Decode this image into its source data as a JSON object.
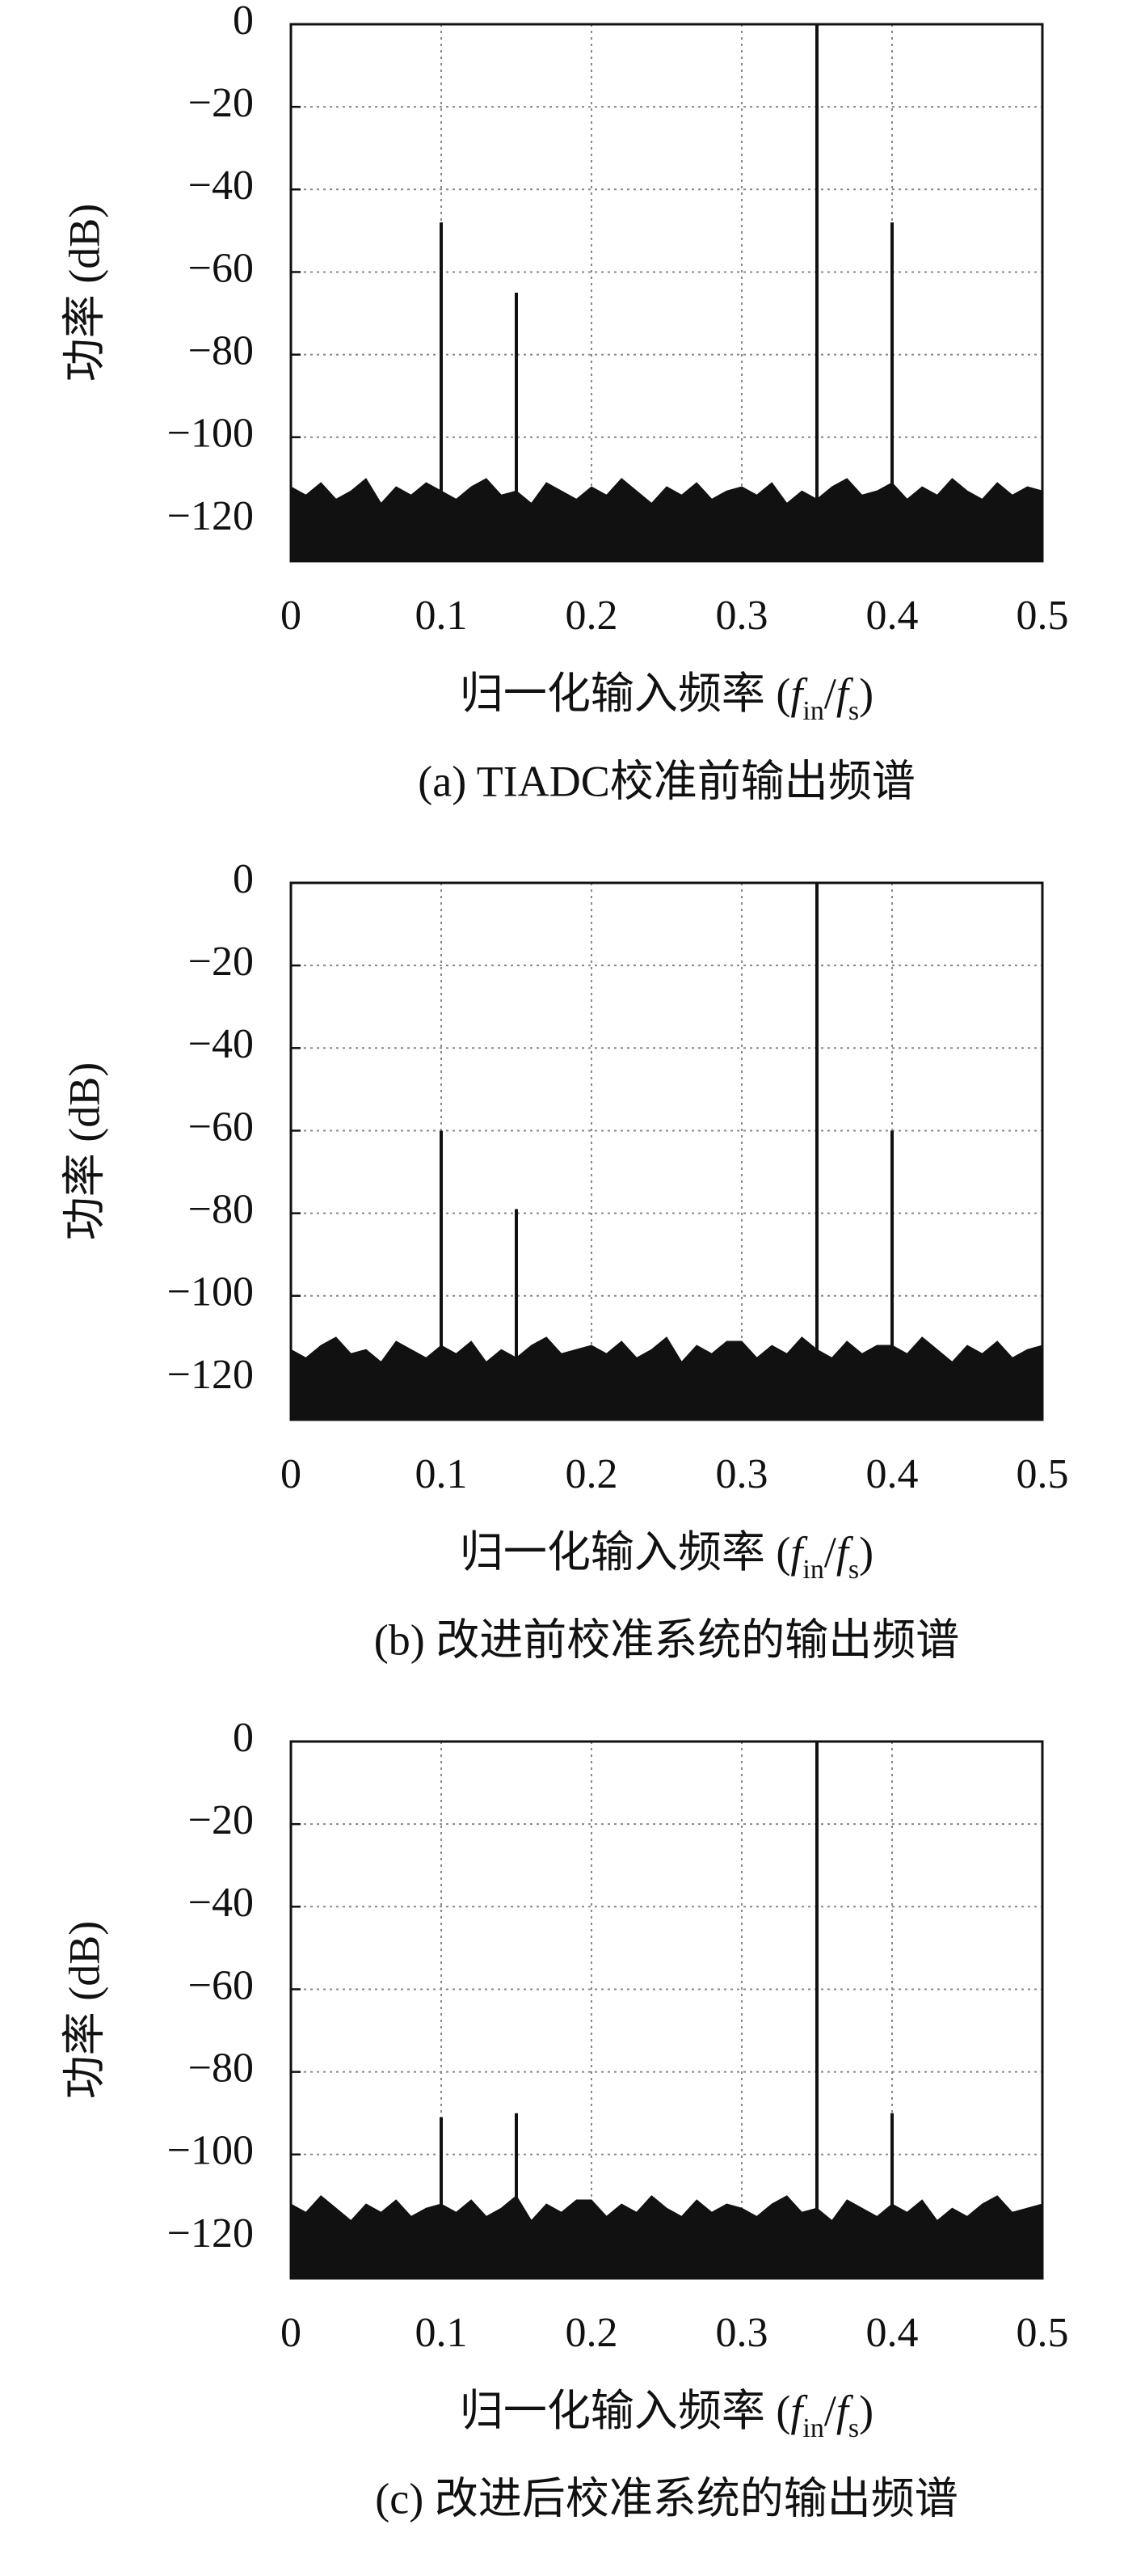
{
  "chart_data": [
    {
      "type": "spectrum",
      "ylabel": "功率 (dB)",
      "xlabel": [
        "归一化输入频率 (",
        "f",
        "in",
        "/",
        "f",
        "s",
        ")"
      ],
      "caption": "(a) TIADC校准前输出频谱",
      "xlim": [
        0,
        0.5
      ],
      "xticks": [
        0,
        0.1,
        0.2,
        0.3,
        0.4,
        0.5
      ],
      "ylim": [
        -130,
        0
      ],
      "yticks": [
        0,
        {
          "value": -20,
          "label": "−20"
        },
        {
          "value": -40,
          "label": "−40"
        },
        {
          "value": -60,
          "label": "−60"
        },
        {
          "value": -80,
          "label": "−80"
        },
        {
          "value": -100,
          "label": "−100"
        },
        {
          "value": -120,
          "label": "−120"
        }
      ],
      "grid": true,
      "color": "#111111",
      "series": [
        {
          "style": "area",
          "x": [
            0,
            0.01,
            0.02,
            0.03,
            0.04,
            0.05,
            0.06,
            0.07,
            0.08,
            0.09,
            0.1,
            0.11,
            0.12,
            0.13,
            0.14,
            0.15,
            0.16,
            0.17,
            0.18,
            0.19,
            0.2,
            0.21,
            0.22,
            0.23,
            0.24,
            0.25,
            0.26,
            0.27,
            0.28,
            0.29,
            0.3,
            0.31,
            0.32,
            0.33,
            0.34,
            0.35,
            0.36,
            0.37,
            0.38,
            0.39,
            0.4,
            0.41,
            0.42,
            0.43,
            0.44,
            0.45,
            0.46,
            0.47,
            0.48,
            0.49,
            0.5
          ],
          "values": [
            -112,
            -114,
            -111,
            -115,
            -113,
            -110,
            -116,
            -112,
            -114,
            -111,
            -113,
            -115,
            -112,
            -110,
            -114,
            -113,
            -116,
            -111,
            -113,
            -115,
            -112,
            -114,
            -110,
            -113,
            -116,
            -112,
            -114,
            -111,
            -115,
            -113,
            -112,
            -114,
            -111,
            -116,
            -113,
            -115,
            -112,
            -110,
            -114,
            -113,
            -111,
            -115,
            -112,
            -114,
            -110,
            -113,
            -115,
            -111,
            -114,
            -112,
            -113
          ]
        },
        {
          "style": "stem",
          "x": [
            0.1,
            0.15,
            0.35,
            0.4
          ],
          "values": [
            -48,
            -65,
            0,
            -48
          ]
        }
      ]
    },
    {
      "type": "spectrum",
      "ylabel": "功率 (dB)",
      "xlabel": [
        "归一化输入频率 (",
        "f",
        "in",
        "/",
        "f",
        "s",
        ")"
      ],
      "caption": "(b) 改进前校准系统的输出频谱",
      "xlim": [
        0,
        0.5
      ],
      "xticks": [
        0,
        0.1,
        0.2,
        0.3,
        0.4,
        0.5
      ],
      "ylim": [
        -130,
        0
      ],
      "yticks": [
        0,
        {
          "value": -20,
          "label": "−20"
        },
        {
          "value": -40,
          "label": "−40"
        },
        {
          "value": -60,
          "label": "−60"
        },
        {
          "value": -80,
          "label": "−80"
        },
        {
          "value": -100,
          "label": "−100"
        },
        {
          "value": -120,
          "label": "−120"
        }
      ],
      "grid": true,
      "color": "#111111",
      "series": [
        {
          "style": "area",
          "x": [
            0,
            0.01,
            0.02,
            0.03,
            0.04,
            0.05,
            0.06,
            0.07,
            0.08,
            0.09,
            0.1,
            0.11,
            0.12,
            0.13,
            0.14,
            0.15,
            0.16,
            0.17,
            0.18,
            0.19,
            0.2,
            0.21,
            0.22,
            0.23,
            0.24,
            0.25,
            0.26,
            0.27,
            0.28,
            0.29,
            0.3,
            0.31,
            0.32,
            0.33,
            0.34,
            0.35,
            0.36,
            0.37,
            0.38,
            0.39,
            0.4,
            0.41,
            0.42,
            0.43,
            0.44,
            0.45,
            0.46,
            0.47,
            0.48,
            0.49,
            0.5
          ],
          "values": [
            -113,
            -115,
            -112,
            -110,
            -114,
            -113,
            -116,
            -111,
            -113,
            -115,
            -112,
            -114,
            -111,
            -116,
            -113,
            -115,
            -112,
            -110,
            -114,
            -113,
            -112,
            -114,
            -111,
            -115,
            -113,
            -110,
            -116,
            -112,
            -114,
            -111,
            -111,
            -115,
            -112,
            -114,
            -110,
            -113,
            -115,
            -111,
            -114,
            -112,
            -112,
            -114,
            -110,
            -113,
            -116,
            -112,
            -114,
            -111,
            -115,
            -113,
            -112
          ]
        },
        {
          "style": "stem",
          "x": [
            0.1,
            0.15,
            0.35,
            0.4
          ],
          "values": [
            -60,
            -79,
            0,
            -60
          ]
        }
      ]
    },
    {
      "type": "spectrum",
      "ylabel": "功率 (dB)",
      "xlabel": [
        "归一化输入频率 (",
        "f",
        "in",
        "/",
        "f",
        "s",
        ")"
      ],
      "caption": "(c) 改进后校准系统的输出频谱",
      "xlim": [
        0,
        0.5
      ],
      "xticks": [
        0,
        0.1,
        0.2,
        0.3,
        0.4,
        0.5
      ],
      "ylim": [
        -130,
        0
      ],
      "yticks": [
        0,
        {
          "value": -20,
          "label": "−20"
        },
        {
          "value": -40,
          "label": "−40"
        },
        {
          "value": -60,
          "label": "−60"
        },
        {
          "value": -80,
          "label": "−80"
        },
        {
          "value": -100,
          "label": "−100"
        },
        {
          "value": -120,
          "label": "−120"
        }
      ],
      "grid": true,
      "color": "#111111",
      "series": [
        {
          "style": "area",
          "x": [
            0,
            0.01,
            0.02,
            0.03,
            0.04,
            0.05,
            0.06,
            0.07,
            0.08,
            0.09,
            0.1,
            0.11,
            0.12,
            0.13,
            0.14,
            0.15,
            0.16,
            0.17,
            0.18,
            0.19,
            0.2,
            0.21,
            0.22,
            0.23,
            0.24,
            0.25,
            0.26,
            0.27,
            0.28,
            0.29,
            0.3,
            0.31,
            0.32,
            0.33,
            0.34,
            0.35,
            0.36,
            0.37,
            0.38,
            0.39,
            0.4,
            0.41,
            0.42,
            0.43,
            0.44,
            0.45,
            0.46,
            0.47,
            0.48,
            0.49,
            0.5
          ],
          "values": [
            -112,
            -114,
            -110,
            -113,
            -116,
            -112,
            -114,
            -111,
            -115,
            -113,
            -112,
            -114,
            -111,
            -115,
            -113,
            -110,
            -116,
            -112,
            -114,
            -111,
            -111,
            -115,
            -112,
            -114,
            -110,
            -113,
            -115,
            -111,
            -114,
            -112,
            -113,
            -115,
            -112,
            -110,
            -114,
            -113,
            -116,
            -111,
            -113,
            -115,
            -112,
            -114,
            -111,
            -116,
            -113,
            -115,
            -112,
            -110,
            -114,
            -113,
            -112
          ]
        },
        {
          "style": "stem",
          "x": [
            0.1,
            0.15,
            0.35,
            0.4
          ],
          "values": [
            -91,
            -90,
            0,
            -90
          ]
        }
      ]
    }
  ]
}
